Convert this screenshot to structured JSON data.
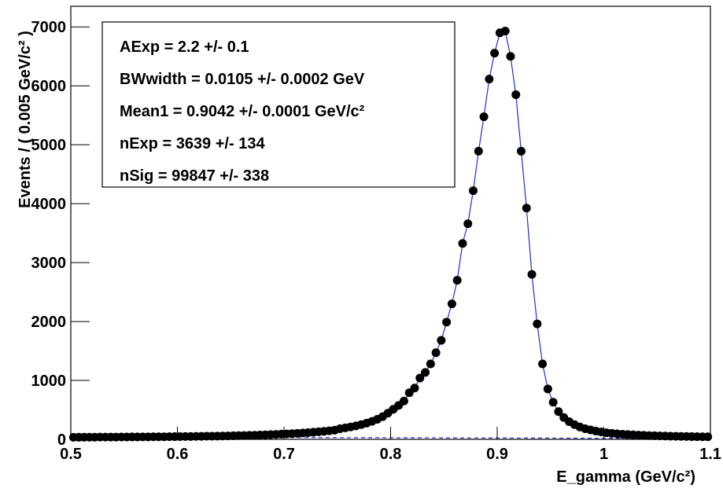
{
  "chart_data": {
    "type": "scatter",
    "x_label": "E_gamma (GeV/c²)",
    "y_label": "Events / ( 0.005 GeV/c² )",
    "stats": [
      "AExp =  2.2 +/- 0.1",
      "BWwidth =  0.0105 +/- 0.0002 GeV",
      "Mean1 =  0.9042 +/- 0.0001 GeV/c²",
      "nExp =  3639 +/- 134",
      "nSig =  99847 +/- 338"
    ],
    "xlim": [
      0.5,
      1.1
    ],
    "ylim": [
      0,
      7350
    ],
    "xticks": [
      0.5,
      0.6,
      0.7,
      0.8,
      0.9,
      1,
      1.1
    ],
    "yticks": [
      0,
      1000,
      2000,
      3000,
      4000,
      5000,
      6000,
      7000
    ],
    "x": [
      0.5025,
      0.5075,
      0.5125,
      0.5175,
      0.5225,
      0.5275,
      0.5325,
      0.5375,
      0.5425,
      0.5475,
      0.5525,
      0.5575,
      0.5625,
      0.5675,
      0.5725,
      0.5775,
      0.5825,
      0.5875,
      0.5925,
      0.5975,
      0.6025,
      0.6075,
      0.6125,
      0.6175,
      0.6225,
      0.6275,
      0.6325,
      0.6375,
      0.6425,
      0.6475,
      0.6525,
      0.6575,
      0.6625,
      0.6675,
      0.6725,
      0.6775,
      0.6825,
      0.6875,
      0.6925,
      0.6975,
      0.7025,
      0.7075,
      0.7125,
      0.7175,
      0.7225,
      0.7275,
      0.7325,
      0.7375,
      0.7425,
      0.7475,
      0.7525,
      0.7575,
      0.7625,
      0.7675,
      0.7725,
      0.7775,
      0.7825,
      0.7875,
      0.7925,
      0.7975,
      0.8025,
      0.8075,
      0.8125,
      0.8175,
      0.8225,
      0.8275,
      0.8325,
      0.8375,
      0.8425,
      0.8475,
      0.8525,
      0.8575,
      0.8625,
      0.8675,
      0.8725,
      0.8775,
      0.8825,
      0.8875,
      0.8925,
      0.8975,
      0.9025,
      0.9075,
      0.9125,
      0.9175,
      0.9225,
      0.9275,
      0.9325,
      0.9375,
      0.9425,
      0.9475,
      0.9525,
      0.9575,
      0.9625,
      0.9675,
      0.9725,
      0.9775,
      0.9825,
      0.9875,
      0.9925,
      0.9975,
      1.0025,
      1.0075,
      1.0125,
      1.0175,
      1.0225,
      1.0275,
      1.0325,
      1.0375,
      1.0425,
      1.0475,
      1.0525,
      1.0575,
      1.0625,
      1.0675,
      1.0725,
      1.0775,
      1.0825,
      1.0875,
      1.0925,
      1.0975
    ],
    "series": [
      {
        "color": "#000000",
        "style": "points",
        "values": [
          35,
          36,
          36,
          37,
          37,
          38,
          38,
          39,
          39,
          40,
          40,
          41,
          41,
          42,
          42,
          43,
          44,
          44,
          45,
          46,
          47,
          48,
          49,
          50,
          51,
          53,
          54,
          55,
          57,
          59,
          61,
          63,
          65,
          68,
          70,
          73,
          76,
          80,
          84,
          88,
          92,
          97,
          102,
          108,
          114,
          121,
          128,
          136,
          145,
          155,
          180,
          195,
          210,
          228,
          250,
          275,
          305,
          340,
          385,
          445,
          510,
          575,
          650,
          790,
          870,
          1040,
          1135,
          1280,
          1470,
          1680,
          1990,
          2300,
          2700,
          3325,
          3660,
          4220,
          4890,
          5475,
          6115,
          6555,
          6900,
          6930,
          6500,
          5850,
          4890,
          3925,
          2800,
          1960,
          1280,
          855,
          630,
          470,
          370,
          300,
          250,
          210,
          180,
          160,
          140,
          125,
          112,
          102,
          94,
          87,
          81,
          76,
          72,
          68,
          64,
          61,
          58,
          56,
          54,
          52,
          50,
          48,
          47,
          45,
          44,
          43
        ]
      },
      {
        "color": "#1f2fd0",
        "style": "line",
        "values": [
          35,
          36,
          36,
          37,
          37,
          38,
          38,
          39,
          39,
          40,
          40,
          41,
          41,
          42,
          42,
          43,
          44,
          44,
          45,
          46,
          47,
          48,
          49,
          50,
          51,
          53,
          54,
          55,
          57,
          59,
          61,
          63,
          65,
          68,
          70,
          73,
          76,
          80,
          84,
          88,
          92,
          97,
          102,
          108,
          114,
          121,
          128,
          136,
          145,
          155,
          180,
          195,
          210,
          228,
          250,
          275,
          305,
          340,
          385,
          445,
          510,
          575,
          650,
          790,
          870,
          1040,
          1135,
          1280,
          1470,
          1680,
          1990,
          2300,
          2700,
          3325,
          3660,
          4220,
          4890,
          5475,
          6115,
          6555,
          6900,
          6930,
          6500,
          5850,
          4890,
          3925,
          2800,
          1960,
          1280,
          855,
          630,
          470,
          370,
          300,
          250,
          210,
          180,
          160,
          140,
          125,
          112,
          102,
          94,
          87,
          81,
          76,
          72,
          68,
          64,
          61,
          58,
          56,
          54,
          52,
          50,
          48,
          47,
          45,
          44,
          43
        ]
      },
      {
        "color": "#1f2fd0",
        "style": "dashed",
        "x": [
          0.5,
          1.1
        ],
        "values": [
          40,
          15
        ]
      }
    ]
  }
}
